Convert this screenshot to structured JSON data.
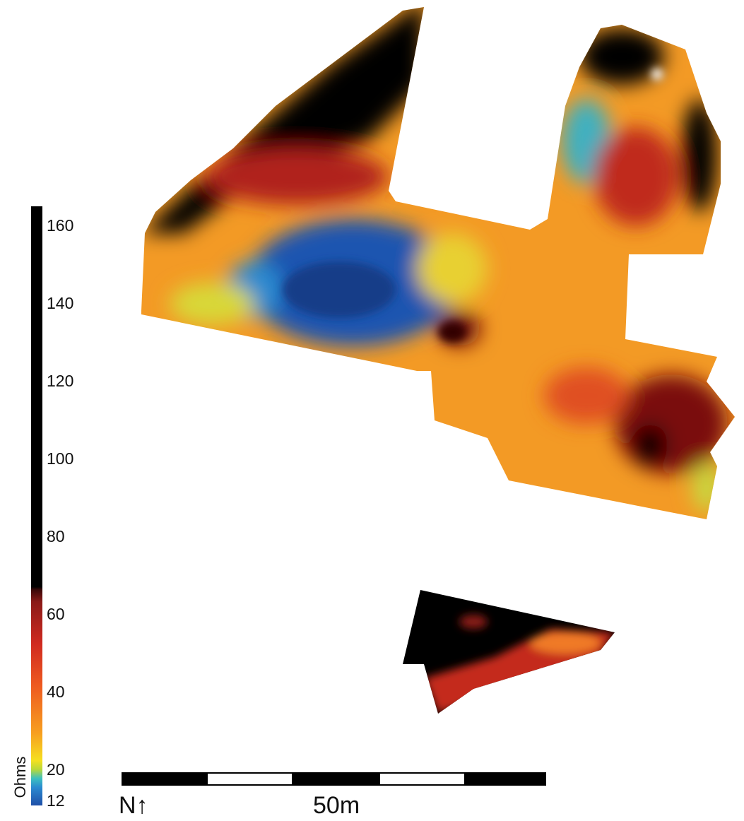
{
  "legend": {
    "title": "Ohms",
    "ticks": [
      12,
      20,
      40,
      60,
      80,
      100,
      120,
      140,
      160
    ]
  },
  "north": "N↑",
  "scale_bar": {
    "label": "50m"
  }
}
